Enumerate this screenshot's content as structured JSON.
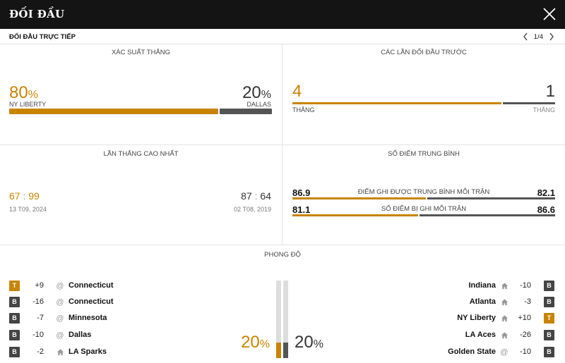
{
  "header": {
    "title": "ĐỐI ĐẦU"
  },
  "subheader": {
    "label": "ĐỐI ĐẦU TRỰC TIẾP",
    "pager": "1/4"
  },
  "win_prob": {
    "title": "XÁC SUẤT THẮNG",
    "left": {
      "value": "80",
      "unit": "%",
      "team": "NY LIBERTY",
      "fraction": 0.8
    },
    "right": {
      "value": "20",
      "unit": "%",
      "team": "DALLAS",
      "fraction": 0.2
    }
  },
  "previous": {
    "title": "CÁC LẦN ĐỐI ĐẦU TRƯỚC",
    "left": {
      "value": "4",
      "label": "THẮNG"
    },
    "right": {
      "value": "1",
      "label": "THẮNG"
    },
    "fraction_left": 0.8
  },
  "biggest_win": {
    "title": "LẦN THẮNG CAO NHẤT",
    "left": {
      "score_a": "67",
      "sep": ":",
      "score_b": "99",
      "date": "13 T09, 2024"
    },
    "right": {
      "score_a": "87",
      "sep": ":",
      "score_b": "64",
      "date": "02 T08, 2019"
    }
  },
  "avg_points": {
    "title": "SỐ ĐIỂM TRUNG BÌNH",
    "rows": [
      {
        "left": "86.9",
        "label": "ĐIỂM GHI ĐƯỢC TRUNG BÌNH MỖI TRẬN",
        "right": "82.1",
        "fraction_left": 0.514
      },
      {
        "left": "81.1",
        "label": "SỐ ĐIỂM BỊ GHI MỖI TRẬN",
        "right": "86.6",
        "fraction_left": 0.484
      }
    ]
  },
  "form": {
    "title": "PHONG ĐỘ",
    "left_pct": {
      "value": "20",
      "unit": "%",
      "fraction": 0.2
    },
    "right_pct": {
      "value": "20",
      "unit": "%",
      "fraction": 0.2
    },
    "left": [
      {
        "result": "T",
        "diff": "+9",
        "venue": "away",
        "venue_icon": "@",
        "team": "Connecticut"
      },
      {
        "result": "B",
        "diff": "-16",
        "venue": "away",
        "venue_icon": "@",
        "team": "Connecticut"
      },
      {
        "result": "B",
        "diff": "-7",
        "venue": "away",
        "venue_icon": "@",
        "team": "Minnesota"
      },
      {
        "result": "B",
        "diff": "-10",
        "venue": "away",
        "venue_icon": "@",
        "team": "Dallas"
      },
      {
        "result": "B",
        "diff": "-2",
        "venue": "home",
        "venue_icon": "home-icon",
        "team": "LA Sparks"
      }
    ],
    "right": [
      {
        "result": "B",
        "diff": "-10",
        "venue": "home",
        "venue_icon": "home-icon",
        "team": "Indiana"
      },
      {
        "result": "B",
        "diff": "-3",
        "venue": "home",
        "venue_icon": "home-icon",
        "team": "Atlanta"
      },
      {
        "result": "T",
        "diff": "+10",
        "venue": "home",
        "venue_icon": "home-icon",
        "team": "NY Liberty"
      },
      {
        "result": "B",
        "diff": "-26",
        "venue": "home",
        "venue_icon": "home-icon",
        "team": "LA Aces"
      },
      {
        "result": "B",
        "diff": "-10",
        "venue": "away",
        "venue_icon": "@",
        "team": "Golden State"
      }
    ]
  },
  "colors": {
    "accent": "#c88400",
    "dark": "#555555",
    "topbar": "#141414"
  }
}
